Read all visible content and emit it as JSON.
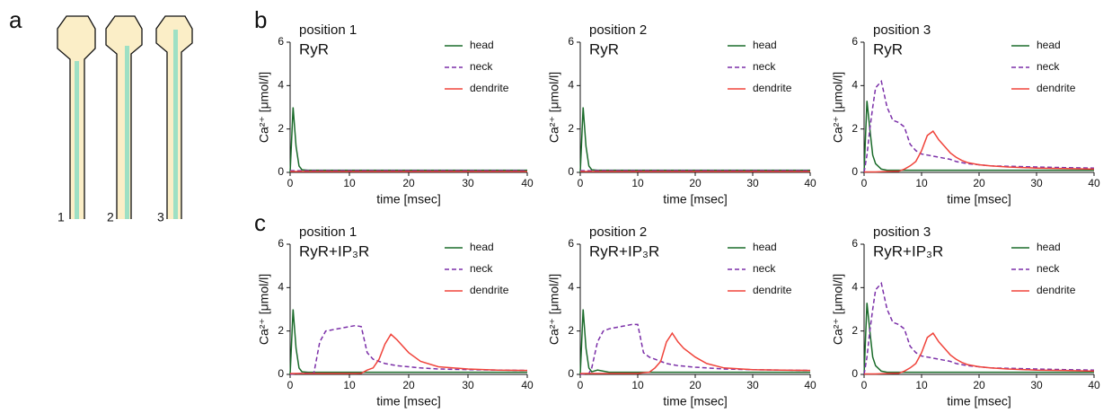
{
  "panels": {
    "a": "a",
    "b": "b",
    "c": "c"
  },
  "schematic": {
    "labels": [
      "1",
      "2",
      "3"
    ]
  },
  "chart_data": [
    {
      "type": "line",
      "title": "position 1",
      "subtitle": "RyR",
      "xlabel": "time [msec]",
      "ylabel": "Ca²⁺ [μmol/l]",
      "xlim": [
        0,
        40
      ],
      "ylim": [
        0,
        6
      ],
      "xticks": [
        0,
        10,
        20,
        30,
        40
      ],
      "yticks": [
        0,
        2,
        4,
        6
      ],
      "legend": "upper right",
      "x": [
        0,
        0.5,
        1,
        1.5,
        2,
        3,
        4,
        5,
        6,
        7,
        8,
        9,
        10,
        11,
        12,
        13,
        14,
        15,
        16,
        17,
        18,
        20,
        22,
        25,
        30,
        35,
        40
      ],
      "series": [
        {
          "name": "head",
          "color": "#1a6b2a",
          "linestyle": "solid",
          "values": [
            0,
            3,
            1.2,
            0.3,
            0.12,
            0.1,
            0.1,
            0.1,
            0.1,
            0.1,
            0.1,
            0.1,
            0.1,
            0.1,
            0.1,
            0.1,
            0.1,
            0.1,
            0.1,
            0.1,
            0.1,
            0.1,
            0.1,
            0.1,
            0.1,
            0.1,
            0.1
          ]
        },
        {
          "name": "neck",
          "color": "#7b2fa8",
          "linestyle": "dashed",
          "values": [
            0.08,
            0.08,
            0.08,
            0.08,
            0.08,
            0.08,
            0.08,
            0.08,
            0.08,
            0.08,
            0.08,
            0.08,
            0.08,
            0.08,
            0.08,
            0.08,
            0.08,
            0.08,
            0.08,
            0.08,
            0.08,
            0.08,
            0.08,
            0.08,
            0.08,
            0.08,
            0.08
          ]
        },
        {
          "name": "dendrite",
          "color": "#f0433a",
          "linestyle": "solid",
          "values": [
            0.04,
            0.04,
            0.04,
            0.04,
            0.04,
            0.04,
            0.04,
            0.04,
            0.04,
            0.04,
            0.04,
            0.04,
            0.04,
            0.04,
            0.04,
            0.04,
            0.04,
            0.04,
            0.04,
            0.04,
            0.04,
            0.04,
            0.04,
            0.04,
            0.04,
            0.04,
            0.04
          ]
        }
      ]
    },
    {
      "type": "line",
      "title": "position 2",
      "subtitle": "RyR",
      "xlabel": "time [msec]",
      "ylabel": "Ca²⁺ [μmol/l]",
      "xlim": [
        0,
        40
      ],
      "ylim": [
        0,
        6
      ],
      "xticks": [
        0,
        10,
        20,
        30,
        40
      ],
      "yticks": [
        0,
        2,
        4,
        6
      ],
      "legend": "upper right",
      "x": [
        0,
        0.5,
        1,
        1.5,
        2,
        3,
        4,
        5,
        6,
        7,
        8,
        9,
        10,
        11,
        12,
        13,
        14,
        15,
        16,
        17,
        18,
        20,
        22,
        25,
        30,
        35,
        40
      ],
      "series": [
        {
          "name": "head",
          "color": "#1a6b2a",
          "linestyle": "solid",
          "values": [
            0,
            3,
            1.2,
            0.3,
            0.12,
            0.1,
            0.1,
            0.1,
            0.1,
            0.1,
            0.1,
            0.1,
            0.1,
            0.1,
            0.1,
            0.1,
            0.1,
            0.1,
            0.1,
            0.1,
            0.1,
            0.1,
            0.1,
            0.1,
            0.1,
            0.1,
            0.1
          ]
        },
        {
          "name": "neck",
          "color": "#7b2fa8",
          "linestyle": "dashed",
          "values": [
            0.08,
            0.08,
            0.08,
            0.08,
            0.08,
            0.08,
            0.08,
            0.08,
            0.08,
            0.08,
            0.08,
            0.08,
            0.08,
            0.08,
            0.08,
            0.08,
            0.08,
            0.08,
            0.08,
            0.08,
            0.08,
            0.08,
            0.08,
            0.08,
            0.08,
            0.08,
            0.08
          ]
        },
        {
          "name": "dendrite",
          "color": "#f0433a",
          "linestyle": "solid",
          "values": [
            0.04,
            0.04,
            0.04,
            0.04,
            0.04,
            0.04,
            0.04,
            0.04,
            0.04,
            0.04,
            0.04,
            0.04,
            0.04,
            0.04,
            0.04,
            0.04,
            0.04,
            0.04,
            0.04,
            0.04,
            0.04,
            0.04,
            0.04,
            0.04,
            0.04,
            0.04,
            0.04
          ]
        }
      ]
    },
    {
      "type": "line",
      "title": "position 3",
      "subtitle": "RyR",
      "xlabel": "time [msec]",
      "ylabel": "Ca²⁺ [μmol/l]",
      "xlim": [
        0,
        40
      ],
      "ylim": [
        0,
        6
      ],
      "xticks": [
        0,
        10,
        20,
        30,
        40
      ],
      "yticks": [
        0,
        2,
        4,
        6
      ],
      "legend": "upper right",
      "x": [
        0,
        0.5,
        1,
        1.5,
        2,
        3,
        4,
        5,
        6,
        7,
        8,
        9,
        10,
        11,
        12,
        13,
        14,
        15,
        16,
        17,
        18,
        20,
        22,
        25,
        30,
        35,
        40
      ],
      "series": [
        {
          "name": "head",
          "color": "#1a6b2a",
          "linestyle": "solid",
          "values": [
            0,
            3.3,
            2,
            0.8,
            0.4,
            0.15,
            0.1,
            0.1,
            0.1,
            0.1,
            0.1,
            0.1,
            0.1,
            0.1,
            0.1,
            0.1,
            0.1,
            0.1,
            0.1,
            0.1,
            0.1,
            0.1,
            0.1,
            0.1,
            0.1,
            0.1,
            0.1
          ]
        },
        {
          "name": "neck",
          "color": "#7b2fa8",
          "linestyle": "dashed",
          "values": [
            0,
            0.8,
            2,
            3,
            3.9,
            4.2,
            3,
            2.4,
            2.3,
            2.1,
            1.3,
            1,
            0.85,
            0.8,
            0.75,
            0.7,
            0.65,
            0.6,
            0.5,
            0.45,
            0.4,
            0.35,
            0.3,
            0.28,
            0.25,
            0.22,
            0.2
          ]
        },
        {
          "name": "dendrite",
          "color": "#f0433a",
          "linestyle": "solid",
          "values": [
            0.02,
            0.02,
            0.02,
            0.02,
            0.02,
            0.03,
            0.04,
            0.05,
            0.05,
            0.15,
            0.3,
            0.5,
            1,
            1.7,
            1.9,
            1.5,
            1.2,
            0.9,
            0.7,
            0.55,
            0.45,
            0.35,
            0.3,
            0.25,
            0.2,
            0.18,
            0.15
          ]
        }
      ]
    },
    {
      "type": "line",
      "title": "position 1",
      "subtitle": "RyR+IP₃R",
      "xlabel": "time [msec]",
      "ylabel": "Ca²⁺ [μmol/l]",
      "xlim": [
        0,
        40
      ],
      "ylim": [
        0,
        6
      ],
      "xticks": [
        0,
        10,
        20,
        30,
        40
      ],
      "yticks": [
        0,
        2,
        4,
        6
      ],
      "legend": "upper right",
      "x": [
        0,
        0.5,
        1,
        1.5,
        2,
        3,
        4,
        5,
        6,
        7,
        8,
        9,
        10,
        11,
        12,
        13,
        14,
        15,
        16,
        17,
        18,
        20,
        22,
        25,
        30,
        35,
        40
      ],
      "series": [
        {
          "name": "head",
          "color": "#1a6b2a",
          "linestyle": "solid",
          "values": [
            0,
            3,
            1.2,
            0.3,
            0.12,
            0.1,
            0.1,
            0.1,
            0.1,
            0.1,
            0.1,
            0.1,
            0.1,
            0.1,
            0.1,
            0.1,
            0.1,
            0.1,
            0.1,
            0.1,
            0.1,
            0.1,
            0.1,
            0.1,
            0.1,
            0.1,
            0.1
          ]
        },
        {
          "name": "neck",
          "color": "#7b2fa8",
          "linestyle": "dashed",
          "values": [
            0,
            0.02,
            0.03,
            0.04,
            0.05,
            0.05,
            0.05,
            1.5,
            2,
            2.05,
            2.1,
            2.15,
            2.2,
            2.25,
            2.2,
            1,
            0.7,
            0.6,
            0.5,
            0.45,
            0.4,
            0.35,
            0.3,
            0.25,
            0.22,
            0.2,
            0.18
          ]
        },
        {
          "name": "dendrite",
          "color": "#f0433a",
          "linestyle": "solid",
          "values": [
            0.04,
            0.04,
            0.04,
            0.04,
            0.04,
            0.04,
            0.04,
            0.04,
            0.04,
            0.04,
            0.04,
            0.04,
            0.04,
            0.04,
            0.05,
            0.2,
            0.3,
            0.7,
            1.4,
            1.85,
            1.6,
            1,
            0.6,
            0.35,
            0.25,
            0.2,
            0.18
          ]
        }
      ]
    },
    {
      "type": "line",
      "title": "position 2",
      "subtitle": "RyR+IP₃R",
      "xlabel": "time [msec]",
      "ylabel": "Ca²⁺ [μmol/l]",
      "xlim": [
        0,
        40
      ],
      "ylim": [
        0,
        6
      ],
      "xticks": [
        0,
        10,
        20,
        30,
        40
      ],
      "yticks": [
        0,
        2,
        4,
        6
      ],
      "legend": "upper right",
      "x": [
        0,
        0.5,
        1,
        1.5,
        2,
        3,
        4,
        5,
        6,
        7,
        8,
        9,
        10,
        11,
        12,
        13,
        14,
        15,
        16,
        17,
        18,
        20,
        22,
        25,
        30,
        35,
        40
      ],
      "series": [
        {
          "name": "head",
          "color": "#1a6b2a",
          "linestyle": "solid",
          "values": [
            0,
            3,
            1.2,
            0.3,
            0.12,
            0.2,
            0.15,
            0.1,
            0.1,
            0.1,
            0.1,
            0.1,
            0.1,
            0.1,
            0.1,
            0.1,
            0.1,
            0.1,
            0.1,
            0.1,
            0.1,
            0.1,
            0.1,
            0.1,
            0.1,
            0.1,
            0.1
          ]
        },
        {
          "name": "neck",
          "color": "#7b2fa8",
          "linestyle": "dashed",
          "values": [
            0,
            0.02,
            0.03,
            0.04,
            0.3,
            1.5,
            2,
            2.1,
            2.15,
            2.2,
            2.25,
            2.3,
            2.3,
            1,
            0.8,
            0.7,
            0.6,
            0.5,
            0.45,
            0.4,
            0.38,
            0.33,
            0.3,
            0.25,
            0.22,
            0.2,
            0.18
          ]
        },
        {
          "name": "dendrite",
          "color": "#f0433a",
          "linestyle": "solid",
          "values": [
            0.04,
            0.04,
            0.04,
            0.04,
            0.04,
            0.04,
            0.04,
            0.04,
            0.04,
            0.04,
            0.04,
            0.04,
            0.04,
            0.08,
            0.1,
            0.3,
            0.6,
            1.5,
            1.9,
            1.5,
            1.2,
            0.8,
            0.5,
            0.3,
            0.22,
            0.2,
            0.18
          ]
        }
      ]
    },
    {
      "type": "line",
      "title": "position 3",
      "subtitle": "RyR+IP₃R",
      "xlabel": "time [msec]",
      "ylabel": "Ca²⁺ [μmol/l]",
      "xlim": [
        0,
        40
      ],
      "ylim": [
        0,
        6
      ],
      "xticks": [
        0,
        10,
        20,
        30,
        40
      ],
      "yticks": [
        0,
        2,
        4,
        6
      ],
      "legend": "upper right",
      "x": [
        0,
        0.5,
        1,
        1.5,
        2,
        3,
        4,
        5,
        6,
        7,
        8,
        9,
        10,
        11,
        12,
        13,
        14,
        15,
        16,
        17,
        18,
        20,
        22,
        25,
        30,
        35,
        40
      ],
      "series": [
        {
          "name": "head",
          "color": "#1a6b2a",
          "linestyle": "solid",
          "values": [
            0,
            3.3,
            2,
            0.8,
            0.4,
            0.15,
            0.1,
            0.1,
            0.1,
            0.1,
            0.1,
            0.1,
            0.1,
            0.1,
            0.1,
            0.1,
            0.1,
            0.1,
            0.1,
            0.1,
            0.1,
            0.1,
            0.1,
            0.1,
            0.1,
            0.1,
            0.1
          ]
        },
        {
          "name": "neck",
          "color": "#7b2fa8",
          "linestyle": "dashed",
          "values": [
            0,
            0.8,
            2,
            3,
            3.9,
            4.2,
            3,
            2.4,
            2.3,
            2.1,
            1.3,
            1,
            0.85,
            0.8,
            0.75,
            0.7,
            0.65,
            0.6,
            0.5,
            0.45,
            0.4,
            0.35,
            0.3,
            0.28,
            0.25,
            0.22,
            0.2
          ]
        },
        {
          "name": "dendrite",
          "color": "#f0433a",
          "linestyle": "solid",
          "values": [
            0.02,
            0.02,
            0.02,
            0.02,
            0.02,
            0.03,
            0.04,
            0.05,
            0.05,
            0.15,
            0.3,
            0.5,
            1,
            1.7,
            1.9,
            1.5,
            1.2,
            0.9,
            0.7,
            0.55,
            0.45,
            0.35,
            0.3,
            0.25,
            0.2,
            0.18,
            0.15
          ]
        }
      ]
    }
  ]
}
